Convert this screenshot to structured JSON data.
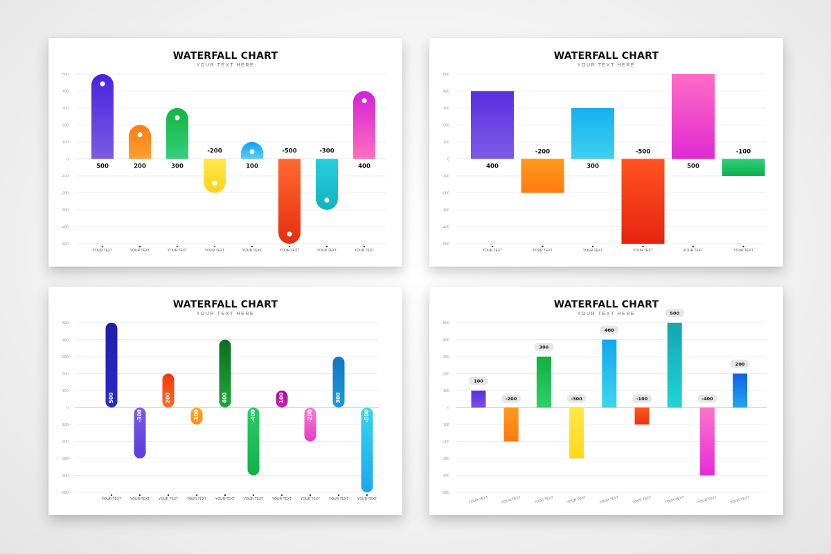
{
  "chart_data": [
    {
      "type": "bar",
      "style": "rounded-pill-with-dot",
      "title": "WATERFALL CHART",
      "subtitle": "YOUR TEXT HERE",
      "ylim": [
        -500,
        500
      ],
      "yticks": [
        500,
        400,
        300,
        200,
        100,
        0,
        -100,
        -200,
        -300,
        -400,
        -500
      ],
      "grid": true,
      "categories": [
        "YOUR TEXT",
        "YOUR TEXT",
        "YOUR TEXT",
        "YOUR TEXT",
        "YOUR TEXT",
        "YOUR TEXT",
        "YOUR TEXT",
        "YOUR TEXT"
      ],
      "values": [
        500,
        200,
        300,
        -200,
        100,
        -500,
        -300,
        400
      ],
      "labels": [
        "500",
        "200",
        "300",
        "-200",
        "100",
        "-500",
        "-300",
        "400"
      ],
      "colors": [
        [
          "#4a22e0",
          "#7a5ce0"
        ],
        [
          "#ff7b15",
          "#ffa030"
        ],
        [
          "#14b444",
          "#34d07a"
        ],
        [
          "#ffd21f",
          "#ffe94a"
        ],
        [
          "#0fa0f0",
          "#5ad0ff"
        ],
        [
          "#e62e10",
          "#ff6a30"
        ],
        [
          "#12b3c0",
          "#27cfd8"
        ],
        [
          "#d321d6",
          "#ff6fbf"
        ]
      ]
    },
    {
      "type": "bar",
      "style": "rectangle",
      "title": "WATERFALL CHART",
      "subtitle": "YOUR TEXT HERE",
      "ylim": [
        -500,
        500
      ],
      "yticks": [
        500,
        400,
        300,
        200,
        100,
        0,
        -100,
        -200,
        -300,
        -400,
        -500
      ],
      "grid": true,
      "categories": [
        "YOUR TEXT",
        "YOUR TEXT",
        "YOUR TEXT",
        "YOUR TEXT",
        "YOUR TEXT",
        "YOUR TEXT"
      ],
      "values": [
        400,
        -200,
        300,
        -500,
        500,
        -100
      ],
      "labels": [
        "400",
        "-200",
        "300",
        "-500",
        "500",
        "-100"
      ],
      "colors": [
        [
          "#5a2ee0",
          "#7e5ce6"
        ],
        [
          "#ff7b10",
          "#ff9a1c"
        ],
        [
          "#16b0f2",
          "#3ed0ec"
        ],
        [
          "#e62410",
          "#ff5420"
        ],
        [
          "#ff6cc6",
          "#e02ad2"
        ],
        [
          "#0fb04c",
          "#2ed07a"
        ]
      ]
    },
    {
      "type": "bar",
      "style": "thin-pill-inner-label",
      "title": "WATERFALL CHART",
      "subtitle": "YOUR TEXT HERE",
      "ylim": [
        -500,
        500
      ],
      "yticks": [
        500,
        400,
        300,
        200,
        100,
        0,
        -100,
        -200,
        -300,
        -400,
        -500
      ],
      "grid": true,
      "categories": [
        "YOUR TEXT",
        "YOUR TEXT",
        "YOUR TEXT",
        "YOUR TEXT",
        "YOUR TEXT",
        "YOUR TEXT",
        "YOUR TEXT",
        "YOUR TEXT",
        "YOUR TEXT",
        "YOUR TEXT"
      ],
      "values": [
        500,
        -300,
        200,
        -100,
        400,
        -400,
        100,
        -200,
        300,
        -500
      ],
      "labels": [
        "500",
        "-300",
        "200",
        "-100",
        "400",
        "-400",
        "100",
        "-200",
        "300",
        "-500"
      ],
      "colors": [
        [
          "#1e1ea8",
          "#2b2bc8"
        ],
        [
          "#5a3ed8",
          "#7a5ce6"
        ],
        [
          "#ee3a10",
          "#ff6a20"
        ],
        [
          "#ff8a10",
          "#ffab2a"
        ],
        [
          "#0e6e22",
          "#1ca83a"
        ],
        [
          "#14b048",
          "#28cc66"
        ],
        [
          "#a80a9a",
          "#cf22b8"
        ],
        [
          "#e63cc8",
          "#ff7ad0"
        ],
        [
          "#0f78c0",
          "#1d9ad8"
        ],
        [
          "#1aa8f0",
          "#36d6ea"
        ]
      ]
    },
    {
      "type": "bar",
      "style": "thin-rect-bubble-label",
      "title": "WATERFALL CHART",
      "subtitle": "YOUR TEXT HERE",
      "ylim": [
        -500,
        500
      ],
      "yticks": [
        500,
        400,
        300,
        200,
        100,
        0,
        -100,
        -200,
        -300,
        -400,
        -500
      ],
      "grid": true,
      "categories": [
        "YOUR TEXT",
        "YOUR TEXT",
        "YOUR TEXT",
        "YOUR TEXT",
        "YOUR TEXT",
        "YOUR TEXT",
        "YOUR TEXT",
        "YOUR TEXT",
        "YOUR TEXT"
      ],
      "values": [
        100,
        -200,
        300,
        -300,
        400,
        -100,
        500,
        -400,
        200
      ],
      "labels": [
        "100",
        "-200",
        "300",
        "-300",
        "400",
        "-100",
        "500",
        "-400",
        "200"
      ],
      "colors": [
        [
          "#5a2ee0",
          "#7a50e8"
        ],
        [
          "#ff7a10",
          "#ff9a22"
        ],
        [
          "#10b040",
          "#2ed06a"
        ],
        [
          "#ffd81a",
          "#ffe84a"
        ],
        [
          "#12a8f0",
          "#3cd6ec"
        ],
        [
          "#ee3010",
          "#ff5a1c"
        ],
        [
          "#10a8b0",
          "#20d4d8"
        ],
        [
          "#e82cd6",
          "#ff74c8"
        ],
        [
          "#1460e8",
          "#1ea8ee"
        ]
      ]
    }
  ]
}
